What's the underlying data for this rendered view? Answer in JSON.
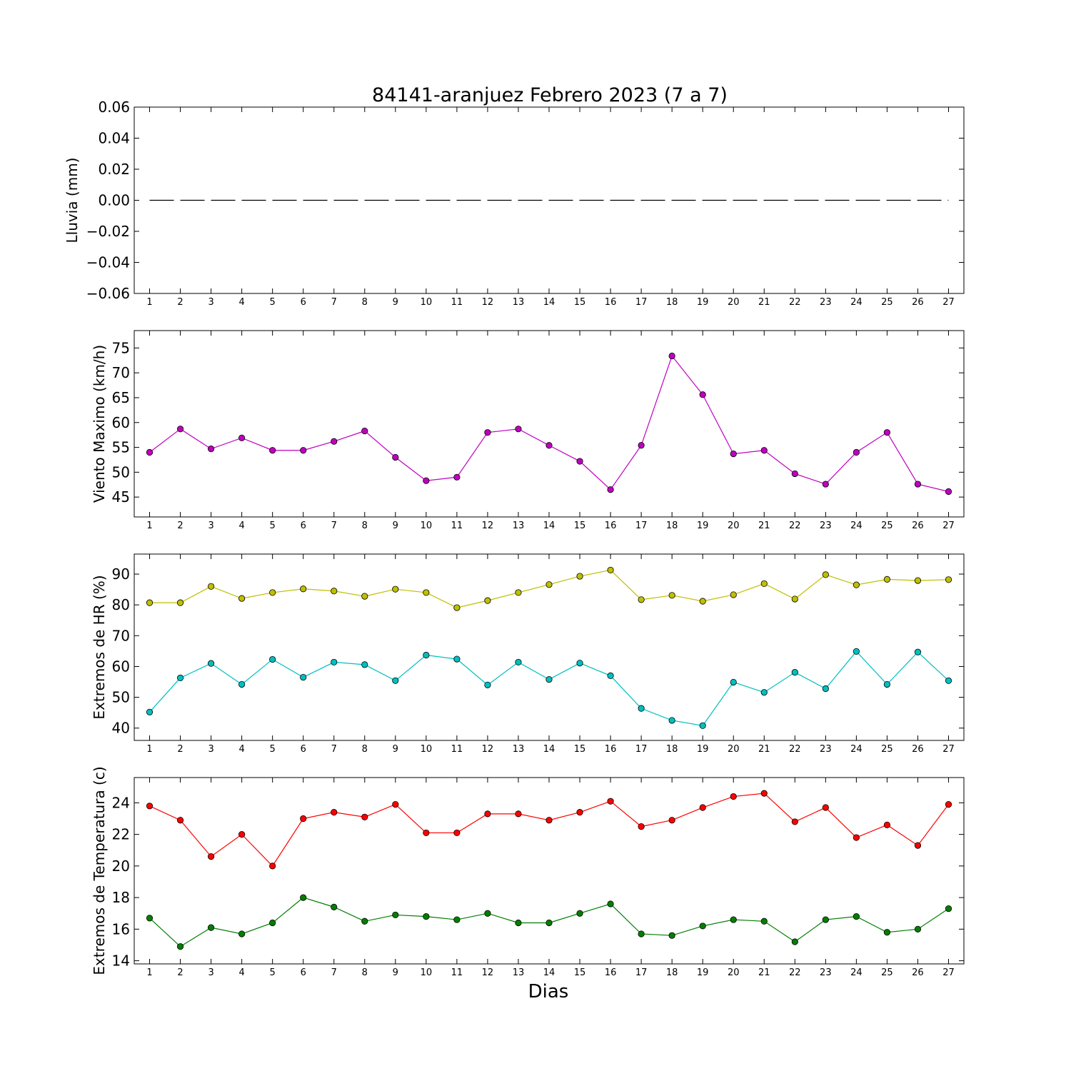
{
  "chart_data": {
    "type": "line",
    "title": "84141-aranjuez Febrero 2023  (7 a 7)",
    "xlabel": "Dias",
    "x": [
      1,
      2,
      3,
      4,
      5,
      6,
      7,
      8,
      9,
      10,
      11,
      12,
      13,
      14,
      15,
      16,
      17,
      18,
      19,
      20,
      21,
      22,
      23,
      24,
      25,
      26,
      27
    ],
    "panels": [
      {
        "ylabel": "Lluvia (mm)",
        "ylim": [
          -0.06,
          0.06
        ],
        "yticks": [
          0.06,
          0.04,
          0.02,
          0.0,
          -0.02,
          -0.04,
          -0.06
        ],
        "ytick_labels": [
          "0.06",
          "0.04",
          "0.02",
          "0.00",
          "−0.02",
          "−0.04",
          "−0.06"
        ],
        "series": [
          {
            "color": "#000000",
            "style": "dashed",
            "marker": false,
            "values": [
              0,
              0,
              0,
              0,
              0,
              0,
              0,
              0,
              0,
              0,
              0,
              0,
              0,
              0,
              0,
              0,
              0,
              0,
              0,
              0,
              0,
              0,
              0,
              0,
              0,
              0,
              0
            ]
          }
        ]
      },
      {
        "ylabel": "Viento Maximo (km/h)",
        "ylim": [
          41,
          78.5
        ],
        "yticks": [
          45,
          50,
          55,
          60,
          65,
          70,
          75
        ],
        "ytick_labels": [
          "45",
          "50",
          "55",
          "60",
          "65",
          "70",
          "75"
        ],
        "series": [
          {
            "color": "#bf00bf",
            "style": "solid",
            "marker": true,
            "values": [
              54.0,
              58.7,
              54.7,
              56.9,
              54.4,
              54.4,
              56.2,
              58.3,
              53.0,
              48.3,
              49.0,
              58.0,
              58.7,
              55.4,
              52.2,
              46.5,
              55.4,
              73.4,
              65.6,
              53.7,
              54.4,
              49.7,
              47.6,
              54.0,
              58.0,
              47.6,
              46.1
            ]
          }
        ]
      },
      {
        "ylabel": "Extremos de HR (%)",
        "ylim": [
          36,
          96.5
        ],
        "yticks": [
          40,
          50,
          60,
          70,
          80,
          90
        ],
        "ytick_labels": [
          "40",
          "50",
          "60",
          "70",
          "80",
          "90"
        ],
        "series": [
          {
            "color": "#bfbf00",
            "style": "solid",
            "marker": true,
            "values": [
              80.7,
              80.7,
              86.0,
              82.1,
              84.0,
              85.2,
              84.5,
              82.8,
              85.1,
              84.0,
              79.1,
              81.4,
              84.0,
              86.6,
              89.3,
              91.3,
              81.7,
              83.1,
              81.2,
              83.3,
              86.9,
              81.9,
              89.8,
              86.5,
              88.3,
              87.9,
              88.2
            ]
          },
          {
            "color": "#00bfbf",
            "style": "solid",
            "marker": true,
            "values": [
              45.2,
              56.3,
              61.0,
              54.2,
              62.3,
              56.5,
              61.4,
              60.6,
              55.4,
              63.7,
              62.4,
              54.0,
              61.4,
              55.8,
              61.1,
              57.0,
              46.4,
              42.5,
              40.8,
              54.9,
              51.6,
              58.1,
              52.8,
              64.9,
              54.2,
              64.7,
              55.4
            ]
          }
        ]
      },
      {
        "ylabel": "Extremos de Temperatura (c)",
        "ylim": [
          13.8,
          25.6
        ],
        "yticks": [
          14,
          16,
          18,
          20,
          22,
          24
        ],
        "ytick_labels": [
          "14",
          "16",
          "18",
          "20",
          "22",
          "24"
        ],
        "series": [
          {
            "color": "#ff0000",
            "style": "solid",
            "marker": true,
            "values": [
              23.8,
              22.9,
              20.6,
              22.0,
              20.0,
              23.0,
              23.4,
              23.1,
              23.9,
              22.1,
              22.1,
              23.3,
              23.3,
              22.9,
              23.4,
              24.1,
              22.5,
              22.9,
              23.7,
              24.4,
              24.6,
              22.8,
              23.7,
              21.8,
              22.6,
              21.3,
              23.9
            ]
          },
          {
            "color": "#007f00",
            "style": "solid",
            "marker": true,
            "values": [
              16.7,
              14.9,
              16.1,
              15.7,
              16.4,
              18.0,
              17.4,
              16.5,
              16.9,
              16.8,
              16.6,
              17.0,
              16.4,
              16.4,
              17.0,
              17.6,
              15.7,
              15.6,
              16.2,
              16.6,
              16.5,
              15.2,
              16.6,
              16.8,
              15.8,
              16.0,
              17.3
            ]
          }
        ]
      }
    ]
  }
}
